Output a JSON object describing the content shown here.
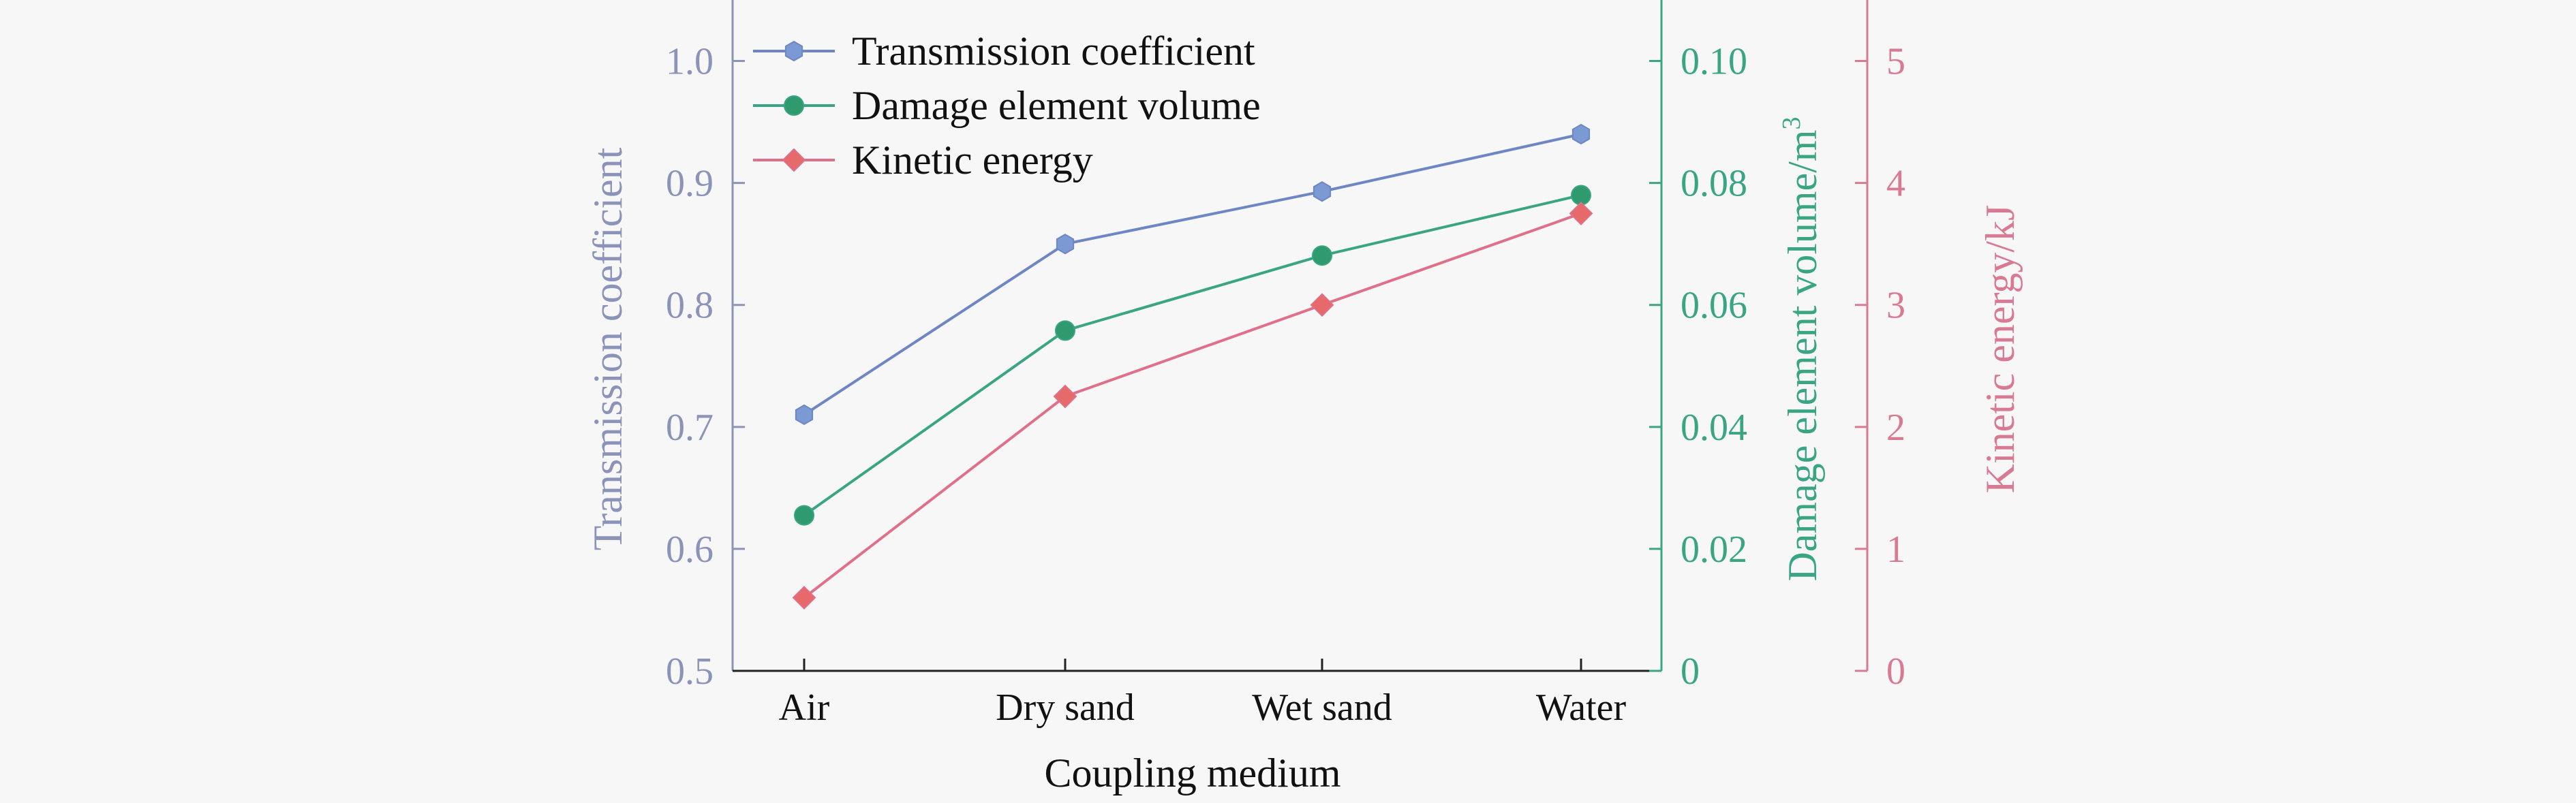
{
  "chart_data": {
    "type": "line",
    "categories": [
      "Air",
      "Dry sand",
      "Wet sand",
      "Water"
    ],
    "xlabel": "Coupling medium",
    "series": [
      {
        "name": "Transmission coefficient",
        "axis": "left",
        "color": "#6e86c4",
        "marker_fill": "#7b9ad4",
        "marker": "hexagon",
        "values": [
          0.71,
          0.85,
          0.893,
          0.94
        ]
      },
      {
        "name": "Damage element volume",
        "axis": "right1",
        "color": "#3aa582",
        "marker_fill": "#2e9a6e",
        "marker": "circle",
        "values": [
          0.0255,
          0.0558,
          0.0681,
          0.078
        ]
      },
      {
        "name": "Kinetic energy",
        "axis": "right2",
        "color": "#e07089",
        "marker_fill": "#e66a6a",
        "marker": "diamond",
        "values": [
          0.6,
          2.25,
          3.0,
          3.75
        ]
      }
    ],
    "axes": {
      "left": {
        "label": "Transmission coefficient",
        "ylim": [
          0.5,
          1.05
        ],
        "ticks": [
          "0.5",
          "0.6",
          "0.7",
          "0.8",
          "0.9",
          "1.0"
        ],
        "color": "#8b93b8"
      },
      "right1": {
        "label_main": "Damage element volume/m",
        "label_sup": "3",
        "ylim": [
          0,
          0.11
        ],
        "ticks": [
          "0",
          "0.02",
          "0.04",
          "0.06",
          "0.08",
          "0.10"
        ],
        "color": "#3aa582"
      },
      "right2": {
        "label": "Kinetic energy/kJ",
        "ylim": [
          0,
          5.5
        ],
        "ticks": [
          "0",
          "1",
          "2",
          "3",
          "4",
          "5"
        ],
        "color": "#d97a93"
      }
    },
    "grid": false,
    "legend_position": "top-left"
  }
}
